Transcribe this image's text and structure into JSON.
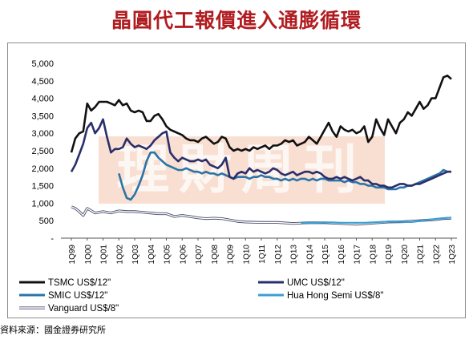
{
  "title": "晶圓代工報價進入通膨循環",
  "source": "資料來源：國金證券研究所",
  "watermark": "理財周刊",
  "colors": {
    "title": "#b01c20",
    "watermark": "#f4c4ad",
    "tsmc": "#111111",
    "umc": "#2a2f6b",
    "smic": "#2a74a8",
    "huahong": "#3aa0d6",
    "vanguard": "#4a4d6e"
  },
  "chart_data": {
    "type": "line",
    "title": "",
    "xlabel": "",
    "ylabel": "",
    "ylim": [
      0,
      5000
    ],
    "yticks": [
      "5,000",
      "4,500",
      "4,000",
      "3,500",
      "3,000",
      "2,500",
      "2,000",
      "1,500",
      "1,000",
      "500",
      "-"
    ],
    "ytick_values": [
      5000,
      4500,
      4000,
      3500,
      3000,
      2500,
      2000,
      1500,
      1000,
      500,
      0
    ],
    "categories": [
      "1Q99",
      "1Q00",
      "1Q01",
      "1Q02",
      "1Q03",
      "1Q04",
      "1Q05",
      "1Q06",
      "1Q07",
      "1Q08",
      "1Q09",
      "1Q10",
      "1Q11",
      "1Q12",
      "1Q13",
      "1Q14",
      "1Q15",
      "1Q16",
      "1Q17",
      "1Q18",
      "1Q19",
      "1Q20",
      "1Q21",
      "1Q22",
      "1Q23"
    ],
    "legend_position": "bottom",
    "grid": false,
    "series": [
      {
        "name": "TSMC US$/12\"",
        "style": "tsmc",
        "x": [
          1999.0,
          1999.25,
          1999.5,
          1999.75,
          2000.0,
          2000.25,
          2000.5,
          2000.75,
          2001.0,
          2001.25,
          2001.5,
          2001.75,
          2002.0,
          2002.25,
          2002.5,
          2002.75,
          2003.0,
          2003.25,
          2003.5,
          2003.75,
          2004.0,
          2004.25,
          2004.5,
          2004.75,
          2005.0,
          2005.25,
          2005.5,
          2005.75,
          2006.0,
          2006.25,
          2006.5,
          2006.75,
          2007.0,
          2007.25,
          2007.5,
          2007.75,
          2008.0,
          2008.25,
          2008.5,
          2008.75,
          2009.0,
          2009.25,
          2009.5,
          2009.75,
          2010.0,
          2010.25,
          2010.5,
          2010.75,
          2011.0,
          2011.25,
          2011.5,
          2011.75,
          2012.0,
          2012.25,
          2012.5,
          2012.75,
          2013.0,
          2013.25,
          2013.5,
          2013.75,
          2014.0,
          2014.25,
          2014.5,
          2014.75,
          2015.0,
          2015.25,
          2015.5,
          2015.75,
          2016.0,
          2016.25,
          2016.5,
          2016.75,
          2017.0,
          2017.25,
          2017.5,
          2017.75,
          2018.0,
          2018.25,
          2018.5,
          2018.75,
          2019.0,
          2019.25,
          2019.5,
          2019.75,
          2020.0,
          2020.25,
          2020.5,
          2020.75,
          2021.0,
          2021.25,
          2021.5,
          2021.75,
          2022.0,
          2022.25,
          2022.5,
          2022.75,
          2023.0
        ],
        "y": [
          2450,
          2850,
          3000,
          3050,
          3850,
          3650,
          3750,
          3900,
          3900,
          3900,
          3850,
          3800,
          3950,
          3800,
          3850,
          3650,
          3600,
          3650,
          3600,
          3350,
          3350,
          3500,
          3550,
          3400,
          3200,
          3100,
          3050,
          3000,
          2950,
          2850,
          2800,
          2800,
          2750,
          2850,
          2900,
          2800,
          2700,
          2750,
          2900,
          2850,
          2600,
          2500,
          2550,
          2500,
          2550,
          2500,
          2600,
          2550,
          2600,
          2650,
          2550,
          2650,
          2650,
          2700,
          2800,
          2750,
          2800,
          2650,
          2700,
          2750,
          2900,
          2800,
          2700,
          2900,
          3100,
          3300,
          3050,
          2900,
          3200,
          3100,
          3050,
          3100,
          3000,
          3050,
          3200,
          2750,
          2900,
          3400,
          3150,
          2950,
          3400,
          3200,
          3000,
          3300,
          3400,
          3600,
          3500,
          3700,
          3900,
          3700,
          3800,
          4000,
          4000,
          4300,
          4600,
          4650,
          4550
        ]
      },
      {
        "name": "UMC US$/12\"",
        "style": "umc",
        "x": [
          1999.0,
          1999.25,
          1999.5,
          1999.75,
          2000.0,
          2000.25,
          2000.5,
          2000.75,
          2001.0,
          2001.25,
          2001.5,
          2001.75,
          2002.0,
          2002.25,
          2002.5,
          2002.75,
          2003.0,
          2003.25,
          2003.5,
          2003.75,
          2004.0,
          2004.25,
          2004.5,
          2004.75,
          2005.0,
          2005.25,
          2005.5,
          2005.75,
          2006.0,
          2006.25,
          2006.5,
          2006.75,
          2007.0,
          2007.25,
          2007.5,
          2007.75,
          2008.0,
          2008.25,
          2008.5,
          2008.75,
          2009.0,
          2009.25,
          2009.5,
          2009.75,
          2010.0,
          2010.25,
          2010.5,
          2010.75,
          2011.0,
          2011.25,
          2011.5,
          2011.75,
          2012.0,
          2012.25,
          2012.5,
          2012.75,
          2013.0,
          2013.25,
          2013.5,
          2013.75,
          2014.0,
          2014.25,
          2014.5,
          2014.75,
          2015.0,
          2015.25,
          2015.5,
          2015.75,
          2016.0,
          2016.25,
          2016.5,
          2016.75,
          2017.0,
          2017.25,
          2017.5,
          2017.75,
          2018.0,
          2018.25,
          2018.5,
          2018.75,
          2019.0,
          2019.25,
          2019.5,
          2019.75,
          2020.0,
          2020.25,
          2020.5,
          2020.75,
          2021.0,
          2021.25,
          2021.5,
          2021.75,
          2022.0,
          2022.25,
          2022.5,
          2022.75,
          2023.0
        ],
        "y": [
          1900,
          2100,
          2400,
          2700,
          3150,
          3300,
          3000,
          3150,
          3400,
          2900,
          2450,
          2550,
          2550,
          2600,
          2850,
          2700,
          2600,
          2650,
          2600,
          2550,
          2650,
          2800,
          2900,
          3000,
          3050,
          2450,
          2300,
          2200,
          2300,
          2250,
          2200,
          2200,
          2250,
          2200,
          2250,
          2100,
          2050,
          2000,
          2100,
          2300,
          1750,
          1700,
          1850,
          1900,
          1850,
          2000,
          1900,
          1950,
          1900,
          1850,
          1900,
          2000,
          1950,
          1850,
          1800,
          1850,
          1900,
          1800,
          1850,
          1900,
          1900,
          1850,
          1900,
          1850,
          1750,
          1700,
          1700,
          1750,
          1700,
          1750,
          1700,
          1650,
          1700,
          1750,
          1650,
          1650,
          1550,
          1550,
          1500,
          1500,
          1450,
          1450,
          1500,
          1550,
          1550,
          1500,
          1500,
          1550,
          1550,
          1600,
          1650,
          1700,
          1750,
          1800,
          1850,
          1900,
          1900
        ]
      },
      {
        "name": "SMIC US$/12\"",
        "style": "smic",
        "x": [
          2002.0,
          2002.25,
          2002.5,
          2002.75,
          2003.0,
          2003.25,
          2003.5,
          2003.75,
          2004.0,
          2004.25,
          2004.5,
          2004.75,
          2005.0,
          2005.25,
          2005.5,
          2005.75,
          2006.0,
          2006.25,
          2006.5,
          2006.75,
          2007.0,
          2007.25,
          2007.5,
          2007.75,
          2008.0,
          2008.25,
          2008.5,
          2008.75,
          2009.0,
          2009.25,
          2009.5,
          2009.75,
          2010.0,
          2010.25,
          2010.5,
          2010.75,
          2011.0,
          2011.25,
          2011.5,
          2011.75,
          2012.0,
          2012.25,
          2012.5,
          2012.75,
          2013.0,
          2013.25,
          2013.5,
          2013.75,
          2014.0,
          2014.25,
          2014.5,
          2014.75,
          2015.0,
          2015.25,
          2015.5,
          2015.75,
          2016.0,
          2016.25,
          2016.5,
          2016.75,
          2017.0,
          2017.25,
          2017.5,
          2017.75,
          2018.0,
          2018.25,
          2018.5,
          2018.75,
          2019.0,
          2019.25,
          2019.5,
          2019.75,
          2020.0,
          2020.25,
          2020.5,
          2020.75,
          2021.0,
          2021.25,
          2021.5,
          2021.75,
          2022.0,
          2022.25,
          2022.5,
          2022.75,
          2023.0
        ],
        "y": [
          1850,
          1450,
          1150,
          1100,
          1250,
          1500,
          1800,
          2200,
          2450,
          2450,
          2300,
          2200,
          2100,
          2050,
          2000,
          1950,
          1950,
          2000,
          1950,
          1900,
          1900,
          1850,
          1900,
          1850,
          1850,
          1800,
          1850,
          1800,
          1750,
          1700,
          1750,
          1750,
          1750,
          1700,
          1750,
          1750,
          1800,
          1750,
          1750,
          1700,
          1700,
          1650,
          1700,
          1650,
          1700,
          1650,
          1700,
          1700,
          1650,
          1700,
          1650,
          1700,
          1700,
          1650,
          1650,
          1650,
          1650,
          1600,
          1650,
          1600,
          1600,
          1550,
          1550,
          1500,
          1500,
          1450,
          1450,
          1450,
          1400,
          1400,
          1400,
          1450,
          1450,
          1500,
          1500,
          1550,
          1600,
          1650,
          1700,
          1750,
          1800,
          1850,
          1950,
          1900,
          1900
        ]
      },
      {
        "name": "Hua Hong Semi US$/8\"",
        "style": "huahong",
        "x": [
          2013.5,
          2014.0,
          2014.5,
          2015.0,
          2015.5,
          2016.0,
          2016.5,
          2017.0,
          2017.5,
          2018.0,
          2018.5,
          2019.0,
          2019.5,
          2020.0,
          2020.5,
          2021.0,
          2021.5,
          2022.0,
          2022.5,
          2023.0
        ],
        "y": [
          430,
          440,
          440,
          450,
          450,
          440,
          440,
          440,
          440,
          450,
          460,
          470,
          480,
          460,
          460,
          490,
          520,
          550,
          570,
          590
        ]
      },
      {
        "name": "Vanguard US$/8\"",
        "style": "vanguard",
        "x": [
          1999.0,
          1999.25,
          1999.5,
          1999.75,
          2000.0,
          2000.5,
          2001.0,
          2001.5,
          2002.0,
          2002.5,
          2003.0,
          2003.5,
          2004.0,
          2004.5,
          2005.0,
          2005.5,
          2006.0,
          2006.5,
          2007.0,
          2007.5,
          2008.0,
          2008.5,
          2009.0,
          2009.5,
          2010.0,
          2011.0,
          2012.0,
          2013.0,
          2014.0,
          2015.0,
          2016.0,
          2017.0,
          2018.0,
          2019.0,
          2020.0,
          2021.0,
          2022.0,
          2022.5,
          2023.0
        ],
        "y": [
          900,
          850,
          760,
          650,
          850,
          720,
          760,
          720,
          780,
          760,
          760,
          740,
          720,
          700,
          700,
          620,
          650,
          620,
          580,
          560,
          570,
          560,
          520,
          480,
          460,
          450,
          450,
          420,
          440,
          440,
          420,
          400,
          430,
          460,
          470,
          500,
          530,
          560,
          570
        ]
      }
    ]
  }
}
